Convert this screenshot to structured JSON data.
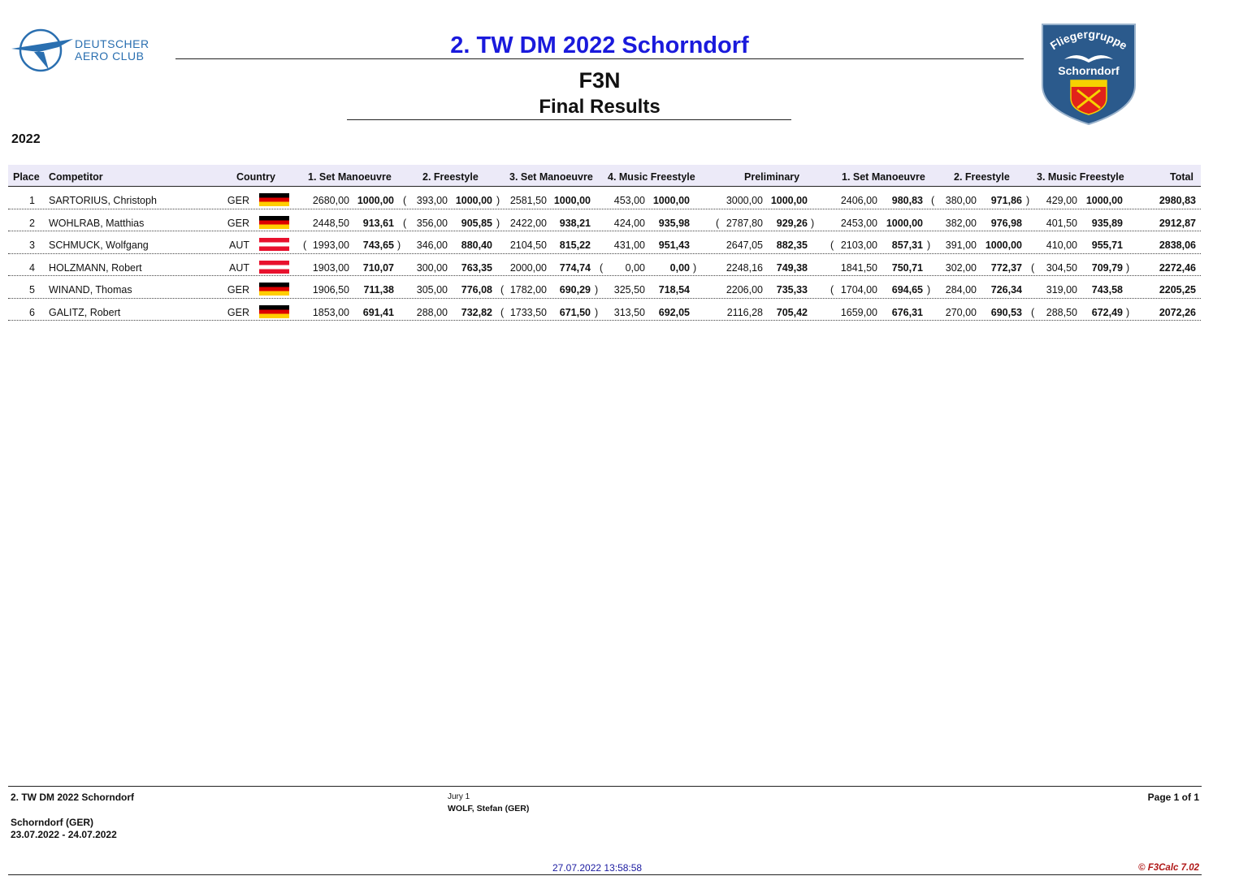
{
  "header": {
    "org_line1": "DEUTSCHER",
    "org_line2": "AERO CLUB",
    "title": "2. TW DM 2022 Schorndorf",
    "class": "F3N",
    "subtitle": "Final Results",
    "club_line1": "Fliegergruppe",
    "club_line2": "Schorndorf",
    "year": "2022"
  },
  "table": {
    "headers": {
      "place": "Place",
      "competitor": "Competitor",
      "country": "Country",
      "r1": "1. Set Manoeuvre",
      "r2": "2. Freestyle",
      "r3": "3. Set Manoeuvre",
      "r4": "4. Music Freestyle",
      "prelim": "Preliminary",
      "f1": "1. Set Manoeuvre",
      "f2": "2. Freestyle",
      "f3": "3. Music Freestyle",
      "total": "Total"
    },
    "rows": [
      {
        "place": "1",
        "name": "SARTORIUS, Christoph",
        "country": "GER",
        "r1": [
          "2680,00",
          "1000,00"
        ],
        "r2": [
          "393,00",
          "1000,00"
        ],
        "r3": [
          "2581,50",
          "1000,00"
        ],
        "r4": [
          "453,00",
          "1000,00"
        ],
        "pre": [
          "3000,00",
          "1000,00"
        ],
        "f1": [
          "2406,00",
          "980,83"
        ],
        "f2": [
          "380,00",
          "971,86"
        ],
        "f3": [
          "429,00",
          "1000,00"
        ],
        "total": "2980,83"
      },
      {
        "place": "2",
        "name": "WOHLRAB, Matthias",
        "country": "GER",
        "r1": [
          "2448,50",
          "913,61"
        ],
        "r2": [
          "356,00",
          "905,85"
        ],
        "r3": [
          "2422,00",
          "938,21"
        ],
        "r4": [
          "424,00",
          "935,98"
        ],
        "pre": [
          "2787,80",
          "929,26"
        ],
        "f1": [
          "2453,00",
          "1000,00"
        ],
        "f2": [
          "382,00",
          "976,98"
        ],
        "f3": [
          "401,50",
          "935,89"
        ],
        "total": "2912,87"
      },
      {
        "place": "3",
        "name": "SCHMUCK, Wolfgang",
        "country": "AUT",
        "r1": [
          "1993,00",
          "743,65"
        ],
        "r2": [
          "346,00",
          "880,40"
        ],
        "r3": [
          "2104,50",
          "815,22"
        ],
        "r4": [
          "431,00",
          "951,43"
        ],
        "pre": [
          "2647,05",
          "882,35"
        ],
        "f1": [
          "2103,00",
          "857,31"
        ],
        "f2": [
          "391,00",
          "1000,00"
        ],
        "f3": [
          "410,00",
          "955,71"
        ],
        "total": "2838,06"
      },
      {
        "place": "4",
        "name": "HOLZMANN, Robert",
        "country": "AUT",
        "r1": [
          "1903,00",
          "710,07"
        ],
        "r2": [
          "300,00",
          "763,35"
        ],
        "r3": [
          "2000,00",
          "774,74"
        ],
        "r4": [
          "0,00",
          "0,00"
        ],
        "pre": [
          "2248,16",
          "749,38"
        ],
        "f1": [
          "1841,50",
          "750,71"
        ],
        "f2": [
          "302,00",
          "772,37"
        ],
        "f3": [
          "304,50",
          "709,79"
        ],
        "total": "2272,46"
      },
      {
        "place": "5",
        "name": "WINAND, Thomas",
        "country": "GER",
        "r1": [
          "1906,50",
          "711,38"
        ],
        "r2": [
          "305,00",
          "776,08"
        ],
        "r3": [
          "1782,00",
          "690,29"
        ],
        "r4": [
          "325,50",
          "718,54"
        ],
        "pre": [
          "2206,00",
          "735,33"
        ],
        "f1": [
          "1704,00",
          "694,65"
        ],
        "f2": [
          "284,00",
          "726,34"
        ],
        "f3": [
          "319,00",
          "743,58"
        ],
        "total": "2205,25"
      },
      {
        "place": "6",
        "name": "GALITZ, Robert",
        "country": "GER",
        "r1": [
          "1853,00",
          "691,41"
        ],
        "r2": [
          "288,00",
          "732,82"
        ],
        "r3": [
          "1733,50",
          "671,50"
        ],
        "r4": [
          "313,50",
          "692,05"
        ],
        "pre": [
          "2116,28",
          "705,42"
        ],
        "f1": [
          "1659,00",
          "676,31"
        ],
        "f2": [
          "270,00",
          "690,53"
        ],
        "f3": [
          "288,50",
          "672,49"
        ],
        "total": "2072,26"
      }
    ],
    "paren_open": "(",
    "paren_close": ")"
  },
  "footer": {
    "event": "2. TW DM 2022 Schorndorf",
    "location": "Schorndorf (GER)",
    "dates": "23.07.2022 - 24.07.2022",
    "jury_label": "Jury 1",
    "jury_name": "WOLF, Stefan (GER)",
    "page": "Page 1 of 1",
    "timestamp": "27.07.2022 13:58:58",
    "software": "© F3Calc 7.02"
  },
  "colors": {
    "title": "#1a1adc",
    "header_bg": "#eceaf8",
    "dac_blue": "#2a6fb0",
    "club_blue": "#2b5a8c",
    "timestamp": "#1a1aa0",
    "software": "#b01818"
  }
}
